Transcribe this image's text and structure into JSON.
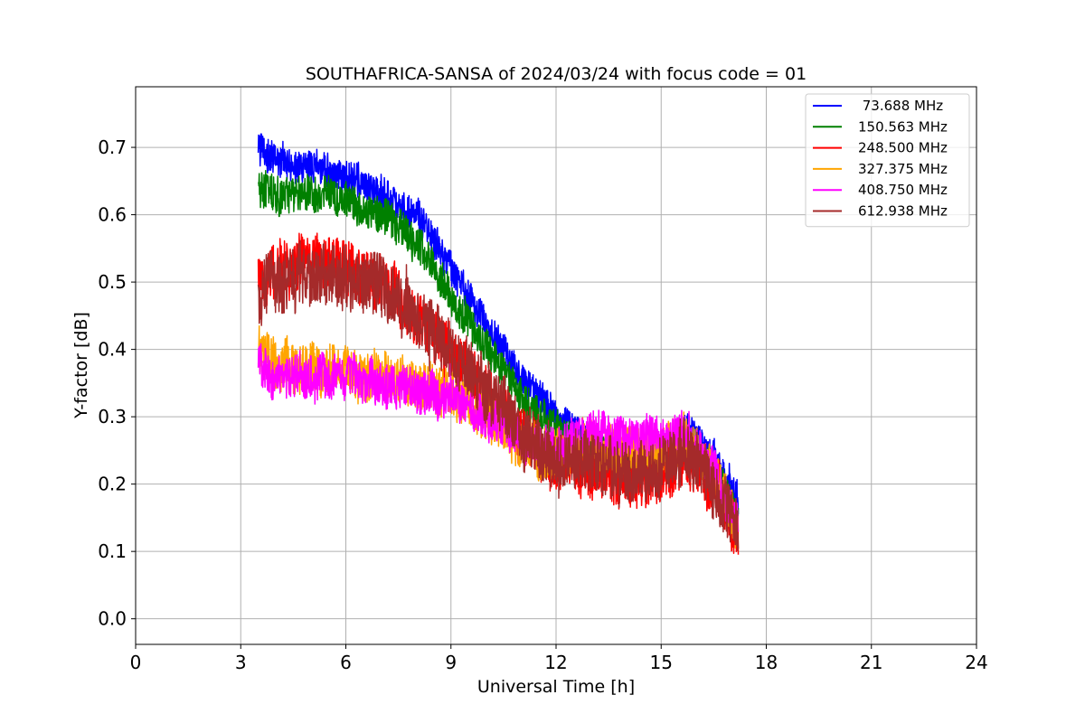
{
  "chart_data": {
    "type": "line",
    "title": "SOUTHAFRICA-SANSA of 2024/03/24 with focus code = 01",
    "xlabel": "Universal Time [h]",
    "ylabel": "Y-factor [dB]",
    "xlim": [
      0,
      24
    ],
    "ylim": [
      -0.038,
      0.79
    ],
    "xticks": [
      0,
      3,
      6,
      9,
      12,
      15,
      18,
      21,
      24
    ],
    "xtick_labels": [
      "0",
      "3",
      "6",
      "9",
      "12",
      "15",
      "18",
      "21",
      "24"
    ],
    "yticks": [
      0.0,
      0.1,
      0.2,
      0.3,
      0.4,
      0.5,
      0.6,
      0.7
    ],
    "ytick_labels": [
      "0.0",
      "0.1",
      "0.2",
      "0.3",
      "0.4",
      "0.5",
      "0.6",
      "0.7"
    ],
    "grid": true,
    "legend_position": "top-right",
    "x": [
      3.5,
      4.0,
      5.0,
      6.0,
      7.0,
      8.0,
      9.0,
      10.0,
      11.0,
      12.0,
      13.0,
      14.0,
      15.0,
      15.7,
      16.5,
      17.0,
      17.2
    ],
    "series": [
      {
        "name": " 73.688 MHz",
        "color": "#0000ff",
        "values": [
          0.7,
          0.68,
          0.67,
          0.66,
          0.63,
          0.6,
          0.52,
          0.44,
          0.36,
          0.3,
          0.27,
          0.25,
          0.24,
          0.28,
          0.24,
          0.2,
          0.18
        ],
        "spread": 0.055
      },
      {
        "name": "150.563 MHz",
        "color": "#008000",
        "values": [
          0.64,
          0.63,
          0.63,
          0.62,
          0.6,
          0.56,
          0.48,
          0.4,
          0.33,
          0.28,
          0.25,
          0.24,
          0.23,
          0.26,
          0.22,
          0.18,
          0.16
        ],
        "spread": 0.06
      },
      {
        "name": "248.500 MHz",
        "color": "#ff0000",
        "values": [
          0.5,
          0.52,
          0.53,
          0.52,
          0.5,
          0.45,
          0.4,
          0.33,
          0.27,
          0.23,
          0.22,
          0.21,
          0.21,
          0.24,
          0.2,
          0.14,
          0.12
        ],
        "spread": 0.09
      },
      {
        "name": "327.375 MHz",
        "color": "#ffa500",
        "values": [
          0.4,
          0.38,
          0.37,
          0.37,
          0.36,
          0.35,
          0.34,
          0.3,
          0.26,
          0.24,
          0.26,
          0.25,
          0.25,
          0.27,
          0.22,
          0.16,
          0.14
        ],
        "spread": 0.08
      },
      {
        "name": "408.750 MHz",
        "color": "#ff00ff",
        "values": [
          0.38,
          0.36,
          0.36,
          0.36,
          0.35,
          0.34,
          0.33,
          0.3,
          0.27,
          0.25,
          0.28,
          0.27,
          0.27,
          0.28,
          0.22,
          0.16,
          0.14
        ],
        "spread": 0.07
      },
      {
        "name": "612.938 MHz",
        "color": "#a52a2a",
        "values": [
          0.48,
          0.5,
          0.51,
          0.51,
          0.49,
          0.45,
          0.4,
          0.34,
          0.28,
          0.23,
          0.23,
          0.22,
          0.22,
          0.25,
          0.2,
          0.15,
          0.13
        ],
        "spread": 0.1
      }
    ]
  }
}
